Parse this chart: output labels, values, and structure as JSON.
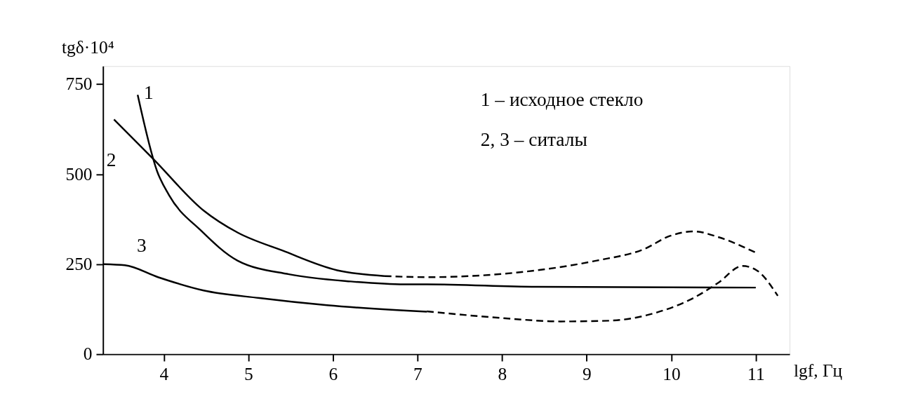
{
  "chart_data": {
    "type": "line",
    "ylabel": "tgδ·10⁴",
    "xlabel": "lgf, Гц",
    "xlim": [
      3.28,
      11.4
    ],
    "xticks": [
      4,
      5,
      6,
      7,
      8,
      9,
      10,
      11
    ],
    "ylim": [
      0,
      800
    ],
    "yticks": [
      0,
      250,
      500,
      750
    ],
    "grid": false,
    "marker": "none",
    "annotations": [
      "1 – исходное стекло",
      "2, 3 – ситалы"
    ],
    "series": [
      {
        "name": "1",
        "color": "#000000",
        "line_style": "solid",
        "x": [
          3.69,
          3.92,
          4.06,
          4.44,
          4.87,
          5.48,
          6.21,
          6.85,
          7.11,
          8.41,
          11
        ],
        "values": [
          720,
          508,
          442,
          343,
          260,
          222,
          202,
          194,
          194,
          187,
          185
        ]
      },
      {
        "name": "2",
        "color": "#000000",
        "line_style": "solid",
        "x": [
          3.41,
          3.88,
          4.47,
          4.87,
          5.4,
          6.05,
          6.61
        ],
        "values": [
          652,
          541,
          399,
          338,
          288,
          233,
          217
        ]
      },
      {
        "color": "#000000",
        "line_style": "dashed",
        "x": [
          6.61,
          7.11,
          8.41,
          9.12,
          9.69,
          9.98,
          10.27,
          10.56,
          11
        ],
        "values": [
          217,
          214,
          233,
          260,
          293,
          328,
          341,
          325,
          282
        ]
      },
      {
        "name": "3",
        "color": "#000000",
        "line_style": "solid",
        "x": [
          3.29,
          3.54,
          3.93,
          4.47,
          5.13,
          5.93,
          7.11
        ],
        "values": [
          250,
          247,
          214,
          177,
          156,
          136,
          118
        ]
      },
      {
        "color": "#000000",
        "line_style": "dashed",
        "x": [
          7.11,
          7.97,
          8.69,
          9.26,
          9.83,
          10.27,
          10.56,
          10.84,
          11.01,
          11.26
        ],
        "values": [
          119,
          101,
          91,
          93,
          116,
          157,
          199,
          245,
          233,
          162
        ]
      }
    ]
  }
}
